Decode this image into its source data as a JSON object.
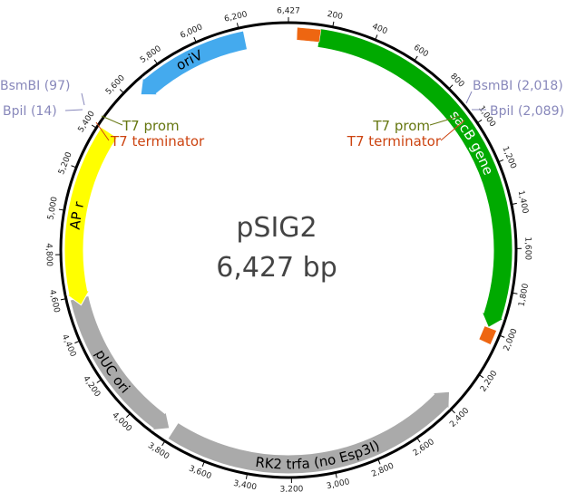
{
  "plasmid": {
    "name": "pSIG2",
    "size_label": "6,427 bp",
    "length_bp": 6427
  },
  "backbone_color": "#000000",
  "ticks": [
    {
      "bp": 200,
      "label": "200"
    },
    {
      "bp": 400,
      "label": "400"
    },
    {
      "bp": 600,
      "label": "600"
    },
    {
      "bp": 800,
      "label": "800"
    },
    {
      "bp": 1000,
      "label": "1,000"
    },
    {
      "bp": 1200,
      "label": "1,200"
    },
    {
      "bp": 1400,
      "label": "1,400"
    },
    {
      "bp": 1600,
      "label": "1,600"
    },
    {
      "bp": 1800,
      "label": "1,800"
    },
    {
      "bp": 2000,
      "label": "2,000"
    },
    {
      "bp": 2200,
      "label": "2,200"
    },
    {
      "bp": 2400,
      "label": "2,400"
    },
    {
      "bp": 2600,
      "label": "2,600"
    },
    {
      "bp": 2800,
      "label": "2,800"
    },
    {
      "bp": 3000,
      "label": "3,000"
    },
    {
      "bp": 3200,
      "label": "3,200"
    },
    {
      "bp": 3400,
      "label": "3,400"
    },
    {
      "bp": 3600,
      "label": "3,600"
    },
    {
      "bp": 3800,
      "label": "3,800"
    },
    {
      "bp": 4000,
      "label": "4,000"
    },
    {
      "bp": 4200,
      "label": "4,200"
    },
    {
      "bp": 4400,
      "label": "4,400"
    },
    {
      "bp": 4600,
      "label": "4,600"
    },
    {
      "bp": 4800,
      "label": "4,800"
    },
    {
      "bp": 5000,
      "label": "5,000"
    },
    {
      "bp": 5200,
      "label": "5,200"
    },
    {
      "bp": 5400,
      "label": "5,400"
    },
    {
      "bp": 5600,
      "label": "5,600"
    },
    {
      "bp": 5800,
      "label": "5,800"
    },
    {
      "bp": 6000,
      "label": "6,000"
    },
    {
      "bp": 6200,
      "label": "6,200"
    },
    {
      "bp": 6427,
      "label": "6,427"
    }
  ],
  "features": [
    {
      "id": "sacb",
      "label": "sacB gene",
      "start": 145,
      "end": 1985,
      "direction": "forward",
      "color": "#00aa00",
      "label_color": "#ffffff"
    },
    {
      "id": "rk2",
      "label": "RK2 trfa (no Esp3I)",
      "start": 2345,
      "end": 3795,
      "direction": "reverse",
      "color": "#aaaaaa",
      "label_color": "#000000"
    },
    {
      "id": "puc",
      "label": "pUC ori",
      "start": 3815,
      "end": 4590,
      "direction": "reverse",
      "color": "#aaaaaa",
      "label_color": "#000000"
    },
    {
      "id": "apr",
      "label": "AP r",
      "start": 4555,
      "end": 5415,
      "direction": "reverse",
      "color": "#ffff00",
      "label_color": "#000000"
    },
    {
      "id": "oriv",
      "label": "oriV",
      "start": 5650,
      "end": 6220,
      "direction": "reverse",
      "color": "#44aaee",
      "label_color": "#000000"
    }
  ],
  "small_features": [
    {
      "id": "t7prom-left",
      "start": 60,
      "end": 120,
      "color": "#ccdd33"
    },
    {
      "id": "t7term-left",
      "start": 40,
      "end": 150,
      "color": "#ee6611"
    },
    {
      "id": "t7prom-right",
      "start": 1995,
      "end": 2040,
      "color": "#ccdd33"
    },
    {
      "id": "t7term-right",
      "start": 1985,
      "end": 2055,
      "color": "#ee6611"
    }
  ],
  "callouts": {
    "bsmbi_left": "BsmBI (97)",
    "bpii_left": "BpiI (14)",
    "bsmbi_right": "BsmBI (2,018)",
    "bpii_right": "BpiI (2,089)",
    "t7prom_left": "T7 prom",
    "t7term_left": "T7 terminator",
    "t7prom_right": "T7 prom",
    "t7term_right": "T7 terminator",
    "t7prom_color": "#667711",
    "t7term_color": "#cc4411"
  }
}
